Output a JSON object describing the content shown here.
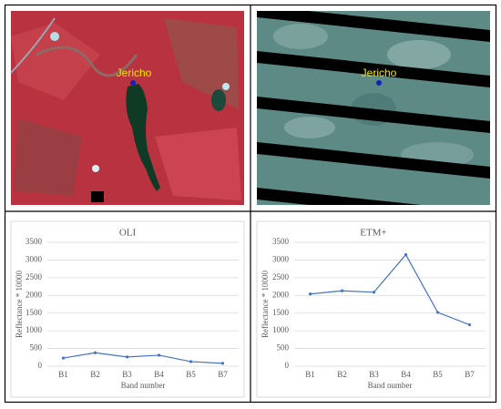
{
  "images": [
    {
      "label": "Jericho"
    },
    {
      "label": "Jericho"
    }
  ],
  "chart_data": [
    {
      "type": "line",
      "title": "OLI",
      "x_label": "Band number",
      "y_label": "Reflectance * 10000",
      "categories": [
        "B1",
        "B2",
        "B3",
        "B4",
        "B5",
        "B7"
      ],
      "values": [
        230,
        380,
        260,
        310,
        130,
        80
      ],
      "color": "#4472c4",
      "ylim": [
        0,
        3500
      ],
      "yticks": [
        0,
        500,
        1000,
        1500,
        2000,
        2500,
        3000,
        3500
      ],
      "grid": true
    },
    {
      "type": "line",
      "title": "ETM+",
      "x_label": "Band number",
      "y_label": "Reflectance * 10000",
      "categories": [
        "B1",
        "B2",
        "B3",
        "B4",
        "B5",
        "B7"
      ],
      "values": [
        2040,
        2130,
        2090,
        3150,
        1520,
        1170
      ],
      "color": "#4472c4",
      "ylim": [
        0,
        3500
      ],
      "yticks": [
        0,
        500,
        1000,
        1500,
        2000,
        2500,
        3000,
        3500
      ],
      "grid": true
    }
  ]
}
